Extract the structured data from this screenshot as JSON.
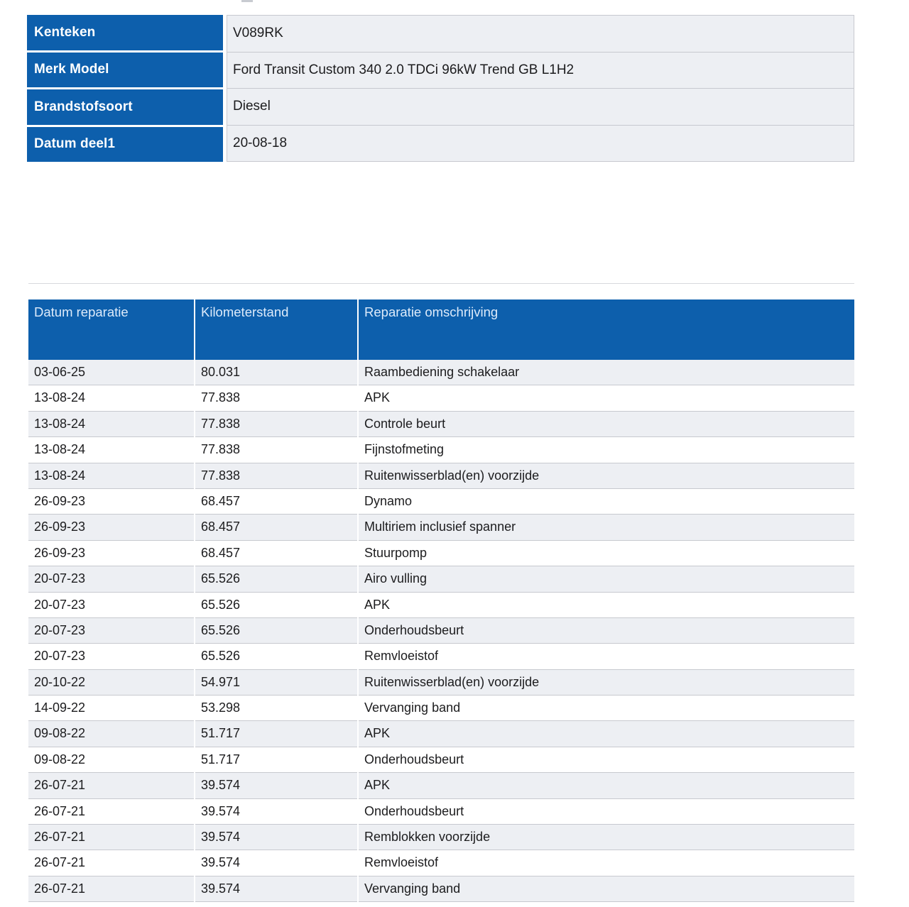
{
  "colors": {
    "header_blue": "#0d5fac",
    "header_text": "#ddebfb",
    "row_alt": "#edeff3",
    "row_border": "#c7c9cf",
    "body_text": "#1c1c1e"
  },
  "info_table": {
    "rows": [
      {
        "label": "Kenteken",
        "value": "V089RK"
      },
      {
        "label": "Merk Model",
        "value": "Ford Transit Custom 340 2.0 TDCi 96kW Trend GB L1H2"
      },
      {
        "label": "Brandstofsoort",
        "value": "Diesel"
      },
      {
        "label": "Datum deel1",
        "value": "20-08-18"
      }
    ]
  },
  "repair_table": {
    "columns": [
      "Datum reparatie",
      "Kilometerstand",
      "Reparatie omschrijving"
    ],
    "rows": [
      [
        "03-06-25",
        "80.031",
        "Raambediening schakelaar"
      ],
      [
        "13-08-24",
        "77.838",
        "APK"
      ],
      [
        "13-08-24",
        "77.838",
        "Controle beurt"
      ],
      [
        "13-08-24",
        "77.838",
        "Fijnstofmeting"
      ],
      [
        "13-08-24",
        "77.838",
        "Ruitenwisserblad(en) voorzijde"
      ],
      [
        "26-09-23",
        "68.457",
        "Dynamo"
      ],
      [
        "26-09-23",
        "68.457",
        "Multiriem inclusief spanner"
      ],
      [
        "26-09-23",
        "68.457",
        "Stuurpomp"
      ],
      [
        "20-07-23",
        "65.526",
        "Airo vulling"
      ],
      [
        "20-07-23",
        "65.526",
        "APK"
      ],
      [
        "20-07-23",
        "65.526",
        "Onderhoudsbeurt"
      ],
      [
        "20-07-23",
        "65.526",
        "Remvloeistof"
      ],
      [
        "20-10-22",
        "54.971",
        "Ruitenwisserblad(en) voorzijde"
      ],
      [
        "14-09-22",
        "53.298",
        "Vervanging band"
      ],
      [
        "09-08-22",
        "51.717",
        "APK"
      ],
      [
        "09-08-22",
        "51.717",
        "Onderhoudsbeurt"
      ],
      [
        "26-07-21",
        "39.574",
        "APK"
      ],
      [
        "26-07-21",
        "39.574",
        "Onderhoudsbeurt"
      ],
      [
        "26-07-21",
        "39.574",
        "Remblokken voorzijde"
      ],
      [
        "26-07-21",
        "39.574",
        "Remvloeistof"
      ],
      [
        "26-07-21",
        "39.574",
        "Vervanging band"
      ]
    ]
  }
}
